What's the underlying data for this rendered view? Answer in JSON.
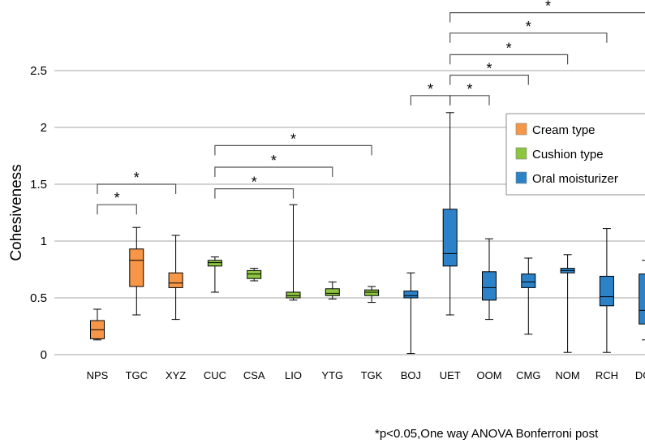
{
  "chart_data": {
    "type": "box",
    "ylabel": "Cohesiveness",
    "xlabel": "",
    "ylim": [
      0,
      2.5
    ],
    "yticks": [
      "0",
      "0.5",
      "1",
      "1.5",
      "2",
      "2.5"
    ],
    "grid": true,
    "legend_position": "top-right",
    "groups": [
      {
        "name": "Cream type",
        "color": "#f79646"
      },
      {
        "name": "Cushion type",
        "color": "#8cc63f"
      },
      {
        "name": "Oral moisturizer",
        "color": "#2b82c9"
      }
    ],
    "boxes": [
      {
        "label": "NPS",
        "group": 0,
        "min": 0.13,
        "q1": 0.14,
        "median": 0.22,
        "q3": 0.3,
        "max": 0.4
      },
      {
        "label": "TGC",
        "group": 0,
        "min": 0.35,
        "q1": 0.6,
        "median": 0.83,
        "q3": 0.93,
        "max": 1.12
      },
      {
        "label": "XYZ",
        "group": 0,
        "min": 0.31,
        "q1": 0.59,
        "median": 0.63,
        "q3": 0.72,
        "max": 1.05
      },
      {
        "label": "CUC",
        "group": 1,
        "min": 0.55,
        "q1": 0.78,
        "median": 0.81,
        "q3": 0.83,
        "max": 0.86
      },
      {
        "label": "CSA",
        "group": 1,
        "min": 0.65,
        "q1": 0.67,
        "median": 0.71,
        "q3": 0.74,
        "max": 0.76
      },
      {
        "label": "LIO",
        "group": 1,
        "min": 0.48,
        "q1": 0.5,
        "median": 0.52,
        "q3": 0.55,
        "max": 1.32
      },
      {
        "label": "YTG",
        "group": 1,
        "min": 0.49,
        "q1": 0.52,
        "median": 0.54,
        "q3": 0.58,
        "max": 0.64
      },
      {
        "label": "TGK",
        "group": 1,
        "min": 0.46,
        "q1": 0.52,
        "median": 0.55,
        "q3": 0.57,
        "max": 0.6
      },
      {
        "label": "BOJ",
        "group": 2,
        "min": 0.01,
        "q1": 0.5,
        "median": 0.52,
        "q3": 0.56,
        "max": 0.72
      },
      {
        "label": "UET",
        "group": 2,
        "min": 0.35,
        "q1": 0.78,
        "median": 0.89,
        "q3": 1.28,
        "max": 2.13
      },
      {
        "label": "OOM",
        "group": 2,
        "min": 0.31,
        "q1": 0.48,
        "median": 0.59,
        "q3": 0.73,
        "max": 1.02
      },
      {
        "label": "CMG",
        "group": 2,
        "min": 0.18,
        "q1": 0.59,
        "median": 0.64,
        "q3": 0.71,
        "max": 0.85
      },
      {
        "label": "NOM",
        "group": 2,
        "min": 0.02,
        "q1": 0.72,
        "median": 0.74,
        "q3": 0.76,
        "max": 0.88
      },
      {
        "label": "RCH",
        "group": 2,
        "min": 0.02,
        "q1": 0.43,
        "median": 0.51,
        "q3": 0.69,
        "max": 1.11
      },
      {
        "label": "DGL",
        "group": 2,
        "min": 0.13,
        "q1": 0.27,
        "median": 0.39,
        "q3": 0.71,
        "max": 0.83
      }
    ],
    "significance": [
      {
        "from": 0,
        "to": 1,
        "level": 1.32,
        "label": "*"
      },
      {
        "from": 0,
        "to": 2,
        "level": 1.5,
        "label": "*"
      },
      {
        "from": 3,
        "to": 5,
        "level": 1.46,
        "label": "*"
      },
      {
        "from": 3,
        "to": 6,
        "level": 1.65,
        "label": "*"
      },
      {
        "from": 3,
        "to": 7,
        "level": 1.84,
        "label": "*"
      },
      {
        "from": 8,
        "to": 9,
        "level": 2.28,
        "label": "*"
      },
      {
        "from": 9,
        "to": 10,
        "level": 2.28,
        "label": "*"
      },
      {
        "from": 9,
        "to": 11,
        "level": 2.46,
        "label": "*"
      },
      {
        "from": 9,
        "to": 12,
        "level": 2.64,
        "label": "*"
      },
      {
        "from": 9,
        "to": 13,
        "level": 2.83,
        "label": "*"
      },
      {
        "from": 9,
        "to": 14,
        "level": 3.01,
        "label": "*"
      }
    ],
    "footnote": "*p<0.05,One way ANOVA Bonferroni post"
  }
}
